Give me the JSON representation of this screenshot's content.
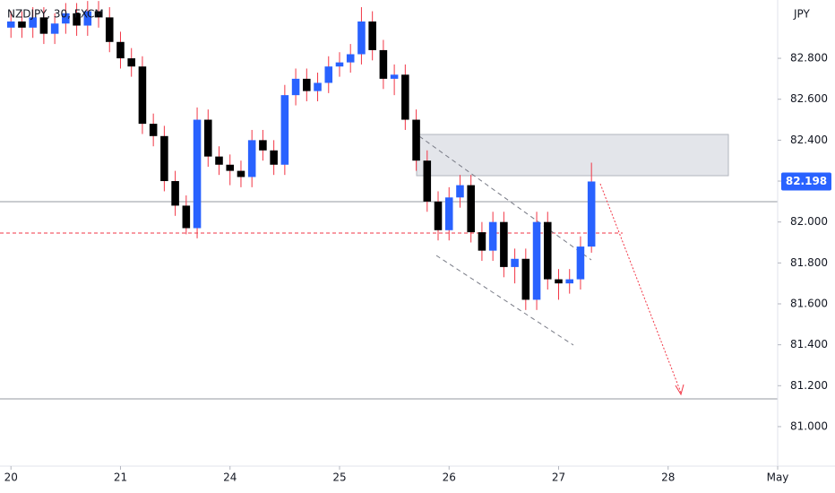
{
  "chart_data": {
    "type": "candlestick",
    "title": "NZDJPY, 30, FXCM",
    "y_unit": "JPY",
    "up_color": "#2962ff",
    "down_color": "#000000",
    "wick_color": "#f23645",
    "last_price": 82.198,
    "last_price_color": "#2962ff",
    "xlim": [
      -0.1,
      7.0
    ],
    "ylim": [
      80.807,
      83.085
    ],
    "xticks": [
      {
        "value": 0,
        "label": "20"
      },
      {
        "value": 1,
        "label": "21"
      },
      {
        "value": 2,
        "label": "24"
      },
      {
        "value": 3,
        "label": "25"
      },
      {
        "value": 4,
        "label": "26"
      },
      {
        "value": 5,
        "label": "27"
      },
      {
        "value": 6,
        "label": "28"
      },
      {
        "value": 7,
        "label": "May"
      }
    ],
    "yticks": [
      {
        "value": 81,
        "label": "81.000"
      },
      {
        "value": 81.2,
        "label": "81.200"
      },
      {
        "value": 81.4,
        "label": "81.400"
      },
      {
        "value": 81.6,
        "label": "81.600"
      },
      {
        "value": 81.8,
        "label": "81.800"
      },
      {
        "value": 82,
        "label": "82.000"
      },
      {
        "value": 82.2,
        "label": "82.200"
      },
      {
        "value": 82.4,
        "label": "82.400"
      },
      {
        "value": 82.6,
        "label": "82.600"
      },
      {
        "value": 82.8,
        "label": "82.800"
      }
    ],
    "x": [
      0.0,
      0.1,
      0.2,
      0.3,
      0.4,
      0.5,
      0.6,
      0.7,
      0.8,
      0.9,
      1.0,
      1.1,
      1.2,
      1.3,
      1.4,
      1.5,
      1.6,
      1.7,
      1.8,
      1.9,
      2.0,
      2.1,
      2.2,
      2.3,
      2.4,
      2.5,
      2.6,
      2.7,
      2.8,
      2.9,
      3.0,
      3.1,
      3.2,
      3.3,
      3.4,
      3.5,
      3.6,
      3.7,
      3.8,
      3.9,
      4.0,
      4.1,
      4.2,
      4.3,
      4.4,
      4.5,
      4.6,
      4.7,
      4.8,
      4.9,
      5.0,
      5.1,
      5.2,
      5.3
    ],
    "open": [
      82.95,
      82.98,
      82.95,
      83.0,
      82.92,
      82.97,
      83.02,
      82.96,
      83.03,
      83.0,
      82.88,
      82.8,
      82.76,
      82.48,
      82.42,
      82.2,
      82.08,
      81.97,
      82.5,
      82.32,
      82.28,
      82.25,
      82.22,
      82.4,
      82.35,
      82.28,
      82.62,
      82.7,
      82.64,
      82.68,
      82.76,
      82.78,
      82.82,
      82.98,
      82.84,
      82.7,
      82.72,
      82.5,
      82.3,
      82.1,
      81.96,
      82.12,
      82.18,
      81.95,
      81.86,
      82.0,
      81.78,
      81.82,
      81.62,
      82.0,
      81.72,
      81.7,
      81.72,
      81.88
    ],
    "high": [
      83.03,
      83.03,
      83.05,
      83.05,
      83.02,
      83.07,
      83.07,
      83.08,
      83.08,
      83.05,
      82.93,
      82.85,
      82.81,
      82.53,
      82.47,
      82.25,
      82.13,
      82.56,
      82.55,
      82.37,
      82.33,
      82.3,
      82.45,
      82.45,
      82.4,
      82.67,
      82.75,
      82.75,
      82.73,
      82.81,
      82.83,
      82.87,
      83.05,
      83.03,
      82.89,
      82.77,
      82.77,
      82.55,
      82.35,
      82.15,
      82.17,
      82.23,
      82.23,
      82.0,
      82.05,
      82.05,
      81.87,
      81.87,
      82.05,
      82.05,
      81.77,
      81.77,
      81.93,
      82.29
    ],
    "low": [
      82.9,
      82.9,
      82.9,
      82.87,
      82.87,
      82.92,
      82.91,
      82.91,
      82.95,
      82.83,
      82.75,
      82.71,
      82.43,
      82.37,
      82.15,
      82.03,
      81.94,
      81.92,
      82.27,
      82.23,
      82.18,
      82.17,
      82.17,
      82.3,
      82.23,
      82.23,
      82.57,
      82.59,
      82.59,
      82.63,
      82.71,
      82.73,
      82.77,
      82.79,
      82.65,
      82.62,
      82.45,
      82.25,
      82.05,
      81.91,
      81.91,
      82.07,
      81.9,
      81.81,
      81.81,
      81.73,
      81.7,
      81.57,
      81.57,
      81.67,
      81.62,
      81.65,
      81.67,
      81.85
    ],
    "close": [
      82.98,
      82.95,
      83.0,
      82.92,
      82.97,
      83.02,
      82.96,
      83.03,
      83.0,
      82.88,
      82.8,
      82.76,
      82.48,
      82.42,
      82.2,
      82.08,
      81.97,
      82.5,
      82.32,
      82.28,
      82.25,
      82.22,
      82.4,
      82.35,
      82.28,
      82.62,
      82.7,
      82.64,
      82.68,
      82.76,
      82.78,
      82.82,
      82.98,
      82.84,
      82.7,
      82.72,
      82.5,
      82.3,
      82.1,
      81.96,
      82.12,
      82.18,
      81.95,
      81.86,
      82.0,
      81.78,
      81.82,
      81.62,
      82.0,
      81.72,
      81.7,
      81.72,
      81.88,
      82.198
    ]
  }
}
